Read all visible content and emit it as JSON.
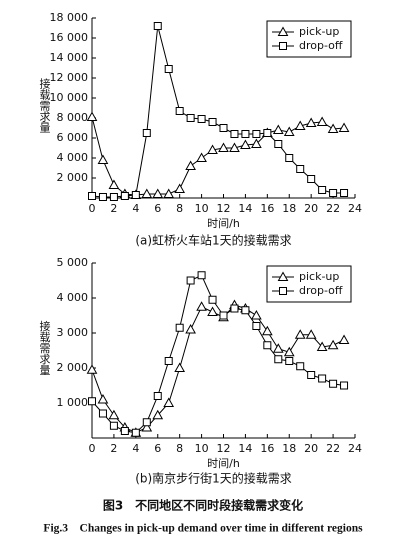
{
  "chart_data": [
    {
      "type": "line",
      "caption": "(a)虹桥火车站1天的接载需求",
      "xlabel": "时间/h",
      "ylabel": "接载需求量",
      "x": [
        0,
        1,
        2,
        3,
        4,
        5,
        6,
        7,
        8,
        9,
        10,
        11,
        12,
        13,
        14,
        15,
        16,
        17,
        18,
        19,
        20,
        21,
        22,
        23
      ],
      "series": [
        {
          "name": "pick-up",
          "color": "#000000",
          "marker": "triangle",
          "values": [
            8100,
            3800,
            1300,
            400,
            300,
            400,
            400,
            400,
            900,
            3200,
            4000,
            4800,
            5000,
            5000,
            5300,
            5400,
            6500,
            6800,
            6600,
            7200,
            7500,
            7600,
            6900,
            7000
          ]
        },
        {
          "name": "drop-off",
          "color": "#000000",
          "marker": "square",
          "values": [
            200,
            100,
            100,
            200,
            300,
            6500,
            17200,
            12900,
            8700,
            8000,
            7900,
            7600,
            7000,
            6400,
            6400,
            6400,
            6500,
            5400,
            4000,
            2900,
            1900,
            800,
            500,
            500
          ]
        }
      ],
      "xlim": [
        0,
        24
      ],
      "xticks": [
        0,
        2,
        4,
        6,
        8,
        10,
        12,
        14,
        16,
        18,
        20,
        22,
        24
      ],
      "ylim": [
        0,
        18000
      ],
      "yticks": [
        {
          "value": 2000,
          "label": "2 000"
        },
        {
          "value": 4000,
          "label": "4 000"
        },
        {
          "value": 6000,
          "label": "6 000"
        },
        {
          "value": 8000,
          "label": "8 000"
        },
        {
          "value": 10000,
          "label": "10 000"
        },
        {
          "value": 12000,
          "label": "12 000"
        },
        {
          "value": 14000,
          "label": "14 000"
        },
        {
          "value": 16000,
          "label": "16 000"
        },
        {
          "value": 18000,
          "label": "18 000"
        }
      ],
      "legend": "upper right",
      "grid": false
    },
    {
      "type": "line",
      "caption": "(b)南京步行街1天的接载需求",
      "xlabel": "时间/h",
      "ylabel": "接载需求量",
      "x": [
        0,
        1,
        2,
        3,
        4,
        5,
        6,
        7,
        8,
        9,
        10,
        11,
        12,
        13,
        14,
        15,
        16,
        17,
        18,
        19,
        20,
        21,
        22,
        23
      ],
      "series": [
        {
          "name": "pick-up",
          "color": "#000000",
          "marker": "triangle",
          "values": [
            1950,
            1100,
            650,
            300,
            150,
            300,
            650,
            1000,
            2000,
            3100,
            3750,
            3600,
            3450,
            3800,
            3700,
            3500,
            3050,
            2550,
            2450,
            2950,
            2950,
            2600,
            2650,
            2800
          ]
        },
        {
          "name": "drop-off",
          "color": "#000000",
          "marker": "square",
          "values": [
            1050,
            700,
            350,
            200,
            150,
            450,
            1200,
            2200,
            3150,
            4500,
            4650,
            3950,
            3500,
            3700,
            3650,
            3200,
            2650,
            2250,
            2200,
            2050,
            1800,
            1700,
            1550,
            1500
          ]
        }
      ],
      "xlim": [
        0,
        24
      ],
      "xticks": [
        0,
        2,
        4,
        6,
        8,
        10,
        12,
        14,
        16,
        18,
        20,
        22,
        24
      ],
      "ylim": [
        0,
        5000
      ],
      "yticks": [
        {
          "value": 1000,
          "label": "1 000"
        },
        {
          "value": 2000,
          "label": "2 000"
        },
        {
          "value": 3000,
          "label": "3 000"
        },
        {
          "value": 4000,
          "label": "4 000"
        },
        {
          "value": 5000,
          "label": "5 000"
        }
      ],
      "legend": "upper right",
      "grid": false
    }
  ],
  "figure_caption": {
    "zh": "图3　不同地区不同时段接载需求变化",
    "en": "Fig.3　Changes in pick-up demand over time in different regions"
  }
}
